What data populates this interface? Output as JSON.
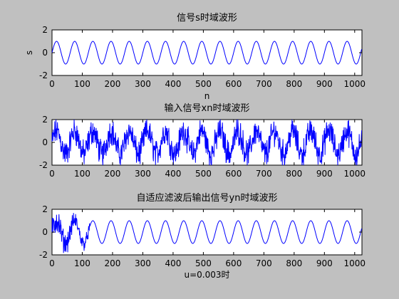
{
  "figure": {
    "background": "#c0c0c0",
    "trace_color": "#0000ff"
  },
  "chart_data": [
    {
      "type": "line",
      "title": "信号s时域波形",
      "xlabel": "n",
      "ylabel": "s",
      "xlim": [
        0,
        1024
      ],
      "ylim": [
        -2,
        2
      ],
      "xticks": [
        0,
        100,
        200,
        300,
        400,
        500,
        600,
        700,
        800,
        900,
        1000
      ],
      "xtick_labels": [
        "0",
        "100",
        "200",
        "300",
        "400",
        "500",
        "600",
        "700",
        "800",
        "900",
        "1000"
      ],
      "yticks": [
        -2,
        0,
        2
      ],
      "ytick_labels": [
        "-2",
        "0",
        "2"
      ],
      "series": [
        {
          "signal": "sine",
          "amplitude": 1,
          "period": 60,
          "n_points": 1024
        }
      ]
    },
    {
      "type": "line",
      "title": "输入信号xn时域波形",
      "xlabel": "",
      "ylabel": "",
      "xlim": [
        0,
        1024
      ],
      "ylim": [
        -2,
        2
      ],
      "xticks": [
        0,
        100,
        200,
        300,
        400,
        500,
        600,
        700,
        800,
        900,
        1000
      ],
      "xtick_labels": [
        "0",
        "100",
        "200",
        "300",
        "400",
        "500",
        "600",
        "700",
        "800",
        "900",
        "1000"
      ],
      "yticks": [
        -2,
        0,
        2
      ],
      "ytick_labels": [
        "-2",
        "0",
        "2"
      ],
      "series": [
        {
          "signal": "sine_plus_noise",
          "amplitude": 1,
          "period": 60,
          "noise_amplitude": 0.9,
          "n_points": 1024
        }
      ]
    },
    {
      "type": "line",
      "title": "自适应滤波后输出信号yn时域波形",
      "xlabel": "u=0.003时",
      "ylabel": "",
      "xlim": [
        0,
        1024
      ],
      "ylim": [
        -2,
        2
      ],
      "xticks": [
        0,
        100,
        200,
        300,
        400,
        500,
        600,
        700,
        800,
        900,
        1000
      ],
      "xtick_labels": [
        "0",
        "100",
        "200",
        "300",
        "400",
        "500",
        "600",
        "700",
        "800",
        "900",
        "1000"
      ],
      "yticks": [
        -2,
        0,
        2
      ],
      "ytick_labels": [
        "-2",
        "0",
        "2"
      ],
      "series": [
        {
          "signal": "adaptive_output",
          "amplitude": 1,
          "period": 60,
          "noise_amplitude": 0.9,
          "convergence_n": 125,
          "n_points": 1024
        }
      ]
    }
  ]
}
